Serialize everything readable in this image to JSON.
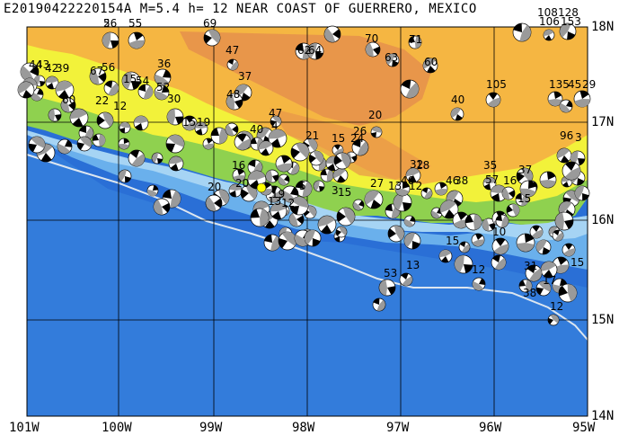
{
  "title": "E20190422220154A M=5.4 h= 12 NEAR COAST OF GUERRERO, MEXICO",
  "lat_labels": [
    "18N",
    "17N",
    "16N",
    "15N",
    "14N"
  ],
  "lon_labels": [
    "101W",
    "100W",
    "99W",
    "98W",
    "97W",
    "96W",
    "95W"
  ],
  "colors": {
    "deep_ocean": "#2a6fd6",
    "ocean": "#3a86e0",
    "shelf": "#6ab0ec",
    "shallow": "#a6d4f4",
    "lowland": "#8fd14f",
    "yellow": "#f2f23a",
    "upland": "#f5b642",
    "highland": "#e8964a",
    "grid": "#000000",
    "trench": "#dce6f0",
    "epicenter": "#ffff00"
  },
  "event_labels": [
    "56",
    "55",
    "69",
    "47",
    "62",
    "64",
    "70",
    "71",
    "128",
    "108",
    "106",
    "153",
    "63",
    "60",
    "44",
    "43",
    "42",
    "39",
    "67",
    "56",
    "15",
    "54",
    "36",
    "52",
    "37",
    "48",
    "40",
    "105",
    "135",
    "45",
    "29",
    "60",
    "22",
    "12",
    "30",
    "15",
    "19",
    "47",
    "20",
    "4",
    "21",
    "15",
    "24",
    "40",
    "26",
    "96",
    "3",
    "16",
    "32",
    "18",
    "20",
    "27",
    "13",
    "46",
    "12",
    "46",
    "38",
    "35",
    "57",
    "16",
    "37",
    "15",
    "20",
    "13",
    "19",
    "12",
    "15",
    "10",
    "53",
    "13",
    "12",
    "31",
    "15",
    "17",
    "12",
    "38",
    "15",
    "3",
    "5",
    "2"
  ]
}
